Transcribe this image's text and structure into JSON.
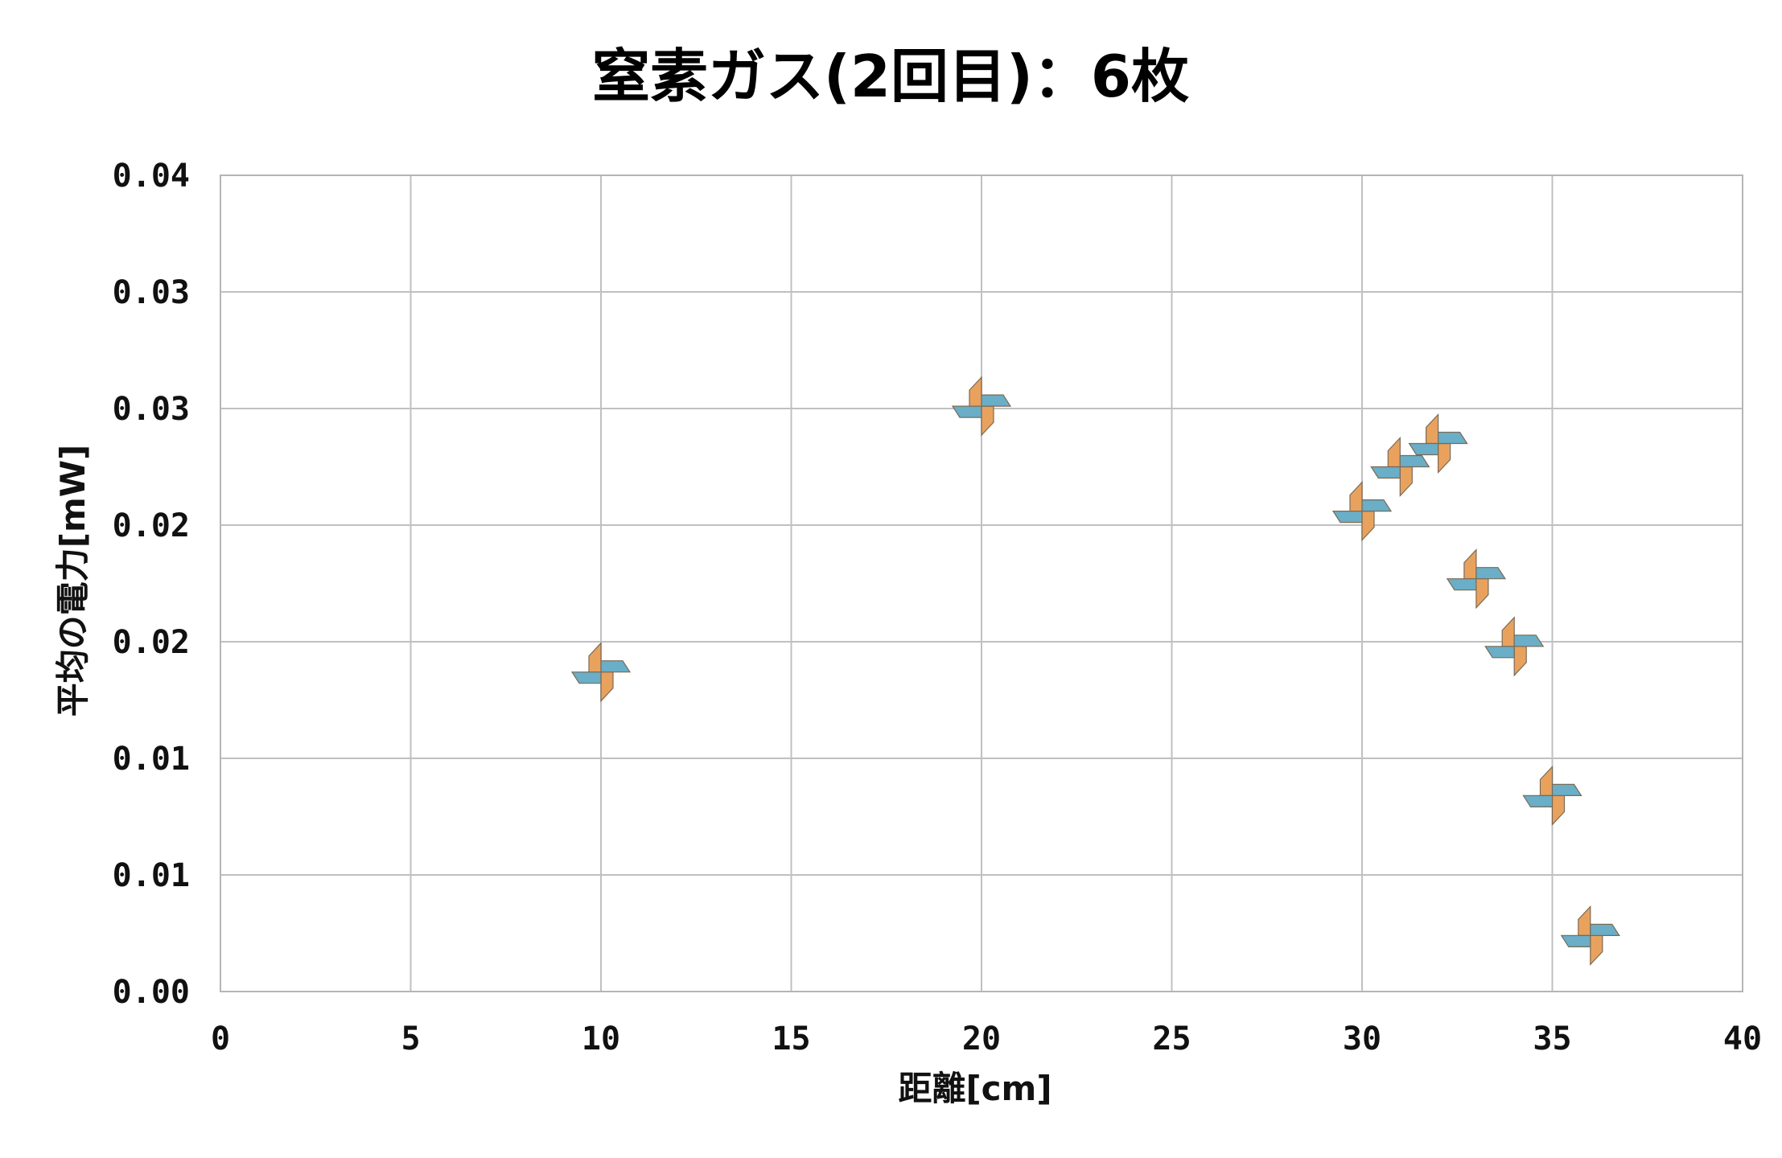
{
  "chart_data": {
    "type": "scatter",
    "title": "窒素ガス(2回目)：6枚",
    "xlabel": "距離[cm]",
    "ylabel": "平均の電力[mW]",
    "xlim": [
      0,
      40
    ],
    "ylim": [
      0,
      0.035
    ],
    "x_ticks": [
      0,
      5,
      10,
      15,
      20,
      25,
      30,
      35,
      40
    ],
    "y_ticks": [
      0,
      0.005,
      0.01,
      0.015,
      0.02,
      0.025,
      0.03,
      0.035
    ],
    "y_tick_labels": [
      "0.00",
      "0.01",
      "0.01",
      "0.02",
      "0.02",
      "0.03",
      "0.03",
      "0.04"
    ],
    "grid": true,
    "marker": "pinwheel",
    "marker_colors": {
      "blade_a": "#e9a25e",
      "blade_b": "#6aaec7",
      "outline": "#7a6a55"
    },
    "series": [
      {
        "points": [
          {
            "x": 10,
            "y": 0.0137
          },
          {
            "x": 20,
            "y": 0.0251
          },
          {
            "x": 30,
            "y": 0.0206
          },
          {
            "x": 31,
            "y": 0.0225
          },
          {
            "x": 32,
            "y": 0.0235
          },
          {
            "x": 33,
            "y": 0.0177
          },
          {
            "x": 34,
            "y": 0.0148
          },
          {
            "x": 35,
            "y": 0.0084
          },
          {
            "x": 36,
            "y": 0.0024
          }
        ]
      }
    ]
  }
}
